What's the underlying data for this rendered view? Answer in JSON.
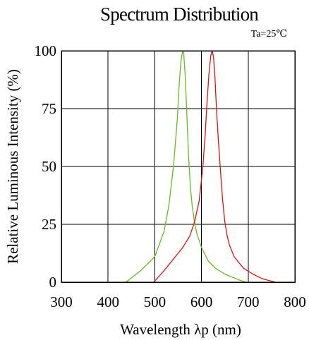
{
  "chart_data": {
    "type": "line",
    "title": "Spectrum Distribution",
    "subtitle": "Ta=25℃",
    "xlabel": "Wavelength λp (nm)",
    "ylabel": "Relative Luminous Intensity (%)",
    "xlim": [
      300,
      800
    ],
    "ylim": [
      0,
      100
    ],
    "x_ticks": [
      "300",
      "400",
      "500",
      "600",
      "700",
      "800"
    ],
    "y_ticks": [
      "0",
      "25",
      "50",
      "75",
      "100"
    ],
    "grid": true,
    "series": [
      {
        "color": "#66bb22",
        "x": [
          438,
          470,
          500,
          520,
          530,
          540,
          548,
          553,
          557,
          560,
          562,
          565,
          568,
          572,
          576,
          580,
          585,
          590,
          600,
          615,
          630,
          650,
          680,
          695
        ],
        "y": [
          0,
          5,
          11,
          22,
          33,
          50,
          70,
          88,
          97,
          100,
          99,
          90,
          76,
          56,
          42,
          33,
          26,
          21,
          15,
          9,
          6,
          3.5,
          1,
          0
        ]
      },
      {
        "color": "#dd1111",
        "x": [
          498,
          520,
          540,
          560,
          575,
          585,
          595,
          603,
          608,
          612,
          616,
          620,
          623,
          626,
          629,
          632,
          636,
          640,
          645,
          650,
          655,
          660,
          670,
          690,
          710,
          730,
          758
        ],
        "y": [
          0,
          5,
          10,
          15,
          20,
          26,
          35,
          50,
          64,
          78,
          90,
          98,
          100,
          97,
          88,
          75,
          62,
          50,
          36,
          26,
          20,
          16,
          11,
          6,
          3.5,
          1.5,
          0
        ]
      }
    ]
  }
}
